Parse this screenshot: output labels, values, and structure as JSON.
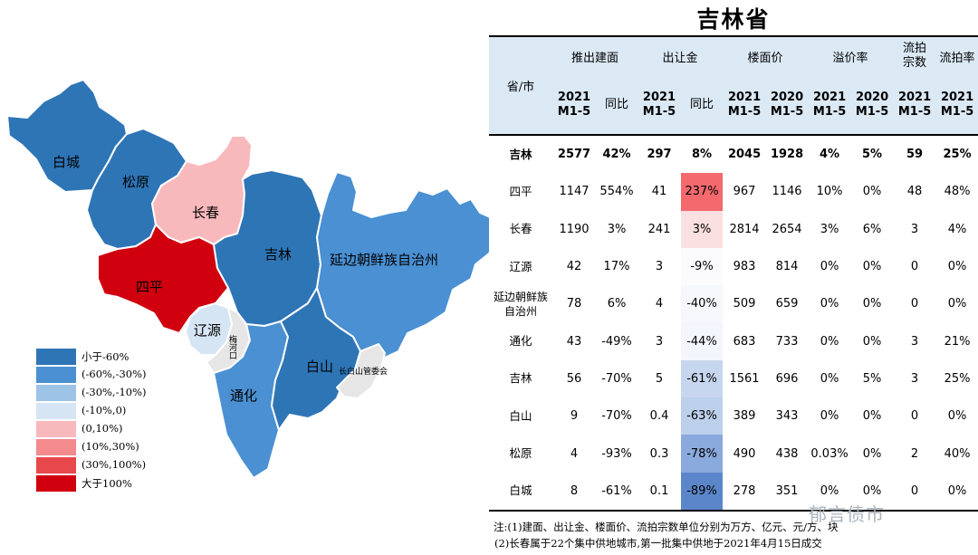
{
  "title": "吉林省",
  "map": {
    "labels": {
      "baicheng": "白城",
      "songyuan": "松原",
      "changchun": "长春",
      "jilin": "吉林",
      "yanbian": "延边朝鲜族自治州",
      "siping": "四平",
      "liaoyuan": "辽源",
      "meihekou": "梅河口",
      "baishan": "白山",
      "tonghua": "通化",
      "changbaishan": "长白山管委会"
    },
    "colors": {
      "lt_-60": "#2e75b6",
      "-60_-30": "#4a90d2",
      "-30_-10": "#9dc3e6",
      "-10_0": "#d6e5f4",
      "0_10": "#f8b9bc",
      "10_30": "#f28a8e",
      "30_100": "#e8474c",
      "gt_100": "#d0000e",
      "none": "#e6e6e6"
    }
  },
  "legend": [
    {
      "label": "小于-60%",
      "color": "#2e75b6"
    },
    {
      "label": "(-60%,-30%)",
      "color": "#4a90d2"
    },
    {
      "label": "(-30%,-10%)",
      "color": "#9dc3e6"
    },
    {
      "label": "(-10%,0)",
      "color": "#d6e5f4"
    },
    {
      "label": "(0,10%)",
      "color": "#f8b9bc"
    },
    {
      "label": "(10%,30%)",
      "color": "#f28a8e"
    },
    {
      "label": "(30%,100%)",
      "color": "#e8474c"
    },
    {
      "label": "大于100%",
      "color": "#d0000e"
    }
  ],
  "table": {
    "header1": {
      "province": "省/市",
      "supply": "推出建面",
      "transfer": "出让金",
      "price": "楼面价",
      "premium": "溢价率",
      "failed_count": "流拍宗数",
      "failed_rate": "流拍率"
    },
    "header2": [
      "2021 M1-5",
      "同比",
      "2021 M1-5",
      "同比",
      "2021 M1-5",
      "2020 M1-5",
      "2021 M1-5",
      "2020 M1-5",
      "2021 M1-5",
      "2021 M1-5"
    ],
    "rows": [
      {
        "name": "吉林",
        "vals": [
          "2577",
          "42%",
          "297",
          "8%",
          "2045",
          "1928",
          "4%",
          "5%",
          "59",
          "25%"
        ],
        "hl": ""
      },
      {
        "name": "四平",
        "vals": [
          "1147",
          "554%",
          "41",
          "237%",
          "967",
          "1146",
          "10%",
          "0%",
          "48",
          "48%"
        ],
        "hl": "#f4696d"
      },
      {
        "name": "长春",
        "vals": [
          "1190",
          "3%",
          "241",
          "3%",
          "2814",
          "2654",
          "3%",
          "6%",
          "3",
          "4%"
        ],
        "hl": "#fbe0e1"
      },
      {
        "name": "辽源",
        "vals": [
          "42",
          "17%",
          "3",
          "-9%",
          "983",
          "814",
          "0%",
          "0%",
          "0",
          "0%"
        ],
        "hl": "#fbfbfe"
      },
      {
        "name": "延边朝鲜族自治州",
        "vals": [
          "78",
          "6%",
          "4",
          "-40%",
          "509",
          "659",
          "0%",
          "0%",
          "0",
          "0%"
        ],
        "hl": "#f6f8fd"
      },
      {
        "name": "通化",
        "vals": [
          "43",
          "-49%",
          "3",
          "-44%",
          "683",
          "733",
          "0%",
          "0%",
          "3",
          "21%"
        ],
        "hl": "#f3f6fc"
      },
      {
        "name": "吉林",
        "vals": [
          "56",
          "-70%",
          "5",
          "-61%",
          "1561",
          "696",
          "0%",
          "5%",
          "3",
          "25%"
        ],
        "hl": "#c6d6ee"
      },
      {
        "name": "白山",
        "vals": [
          "9",
          "-70%",
          "0.4",
          "-63%",
          "389",
          "343",
          "0%",
          "0%",
          "0",
          "0%"
        ],
        "hl": "#bccfeb"
      },
      {
        "name": "松原",
        "vals": [
          "4",
          "-93%",
          "0.3",
          "-78%",
          "490",
          "438",
          "0.03%",
          "0%",
          "2",
          "40%"
        ],
        "hl": "#8aa9dc"
      },
      {
        "name": "白城",
        "vals": [
          "8",
          "-61%",
          "0.1",
          "-89%",
          "278",
          "351",
          "0%",
          "0%",
          "0",
          "0%"
        ],
        "hl": "#5b86c9"
      }
    ]
  },
  "notes": [
    "注:(1)建面、出让金、楼面价、流拍宗数单位分别为万方、亿元、元/方、块",
    "(2)长春属于22个集中供地城市,第一批集中供地于2021年4月15日成交"
  ],
  "watermark": "郁言债市"
}
